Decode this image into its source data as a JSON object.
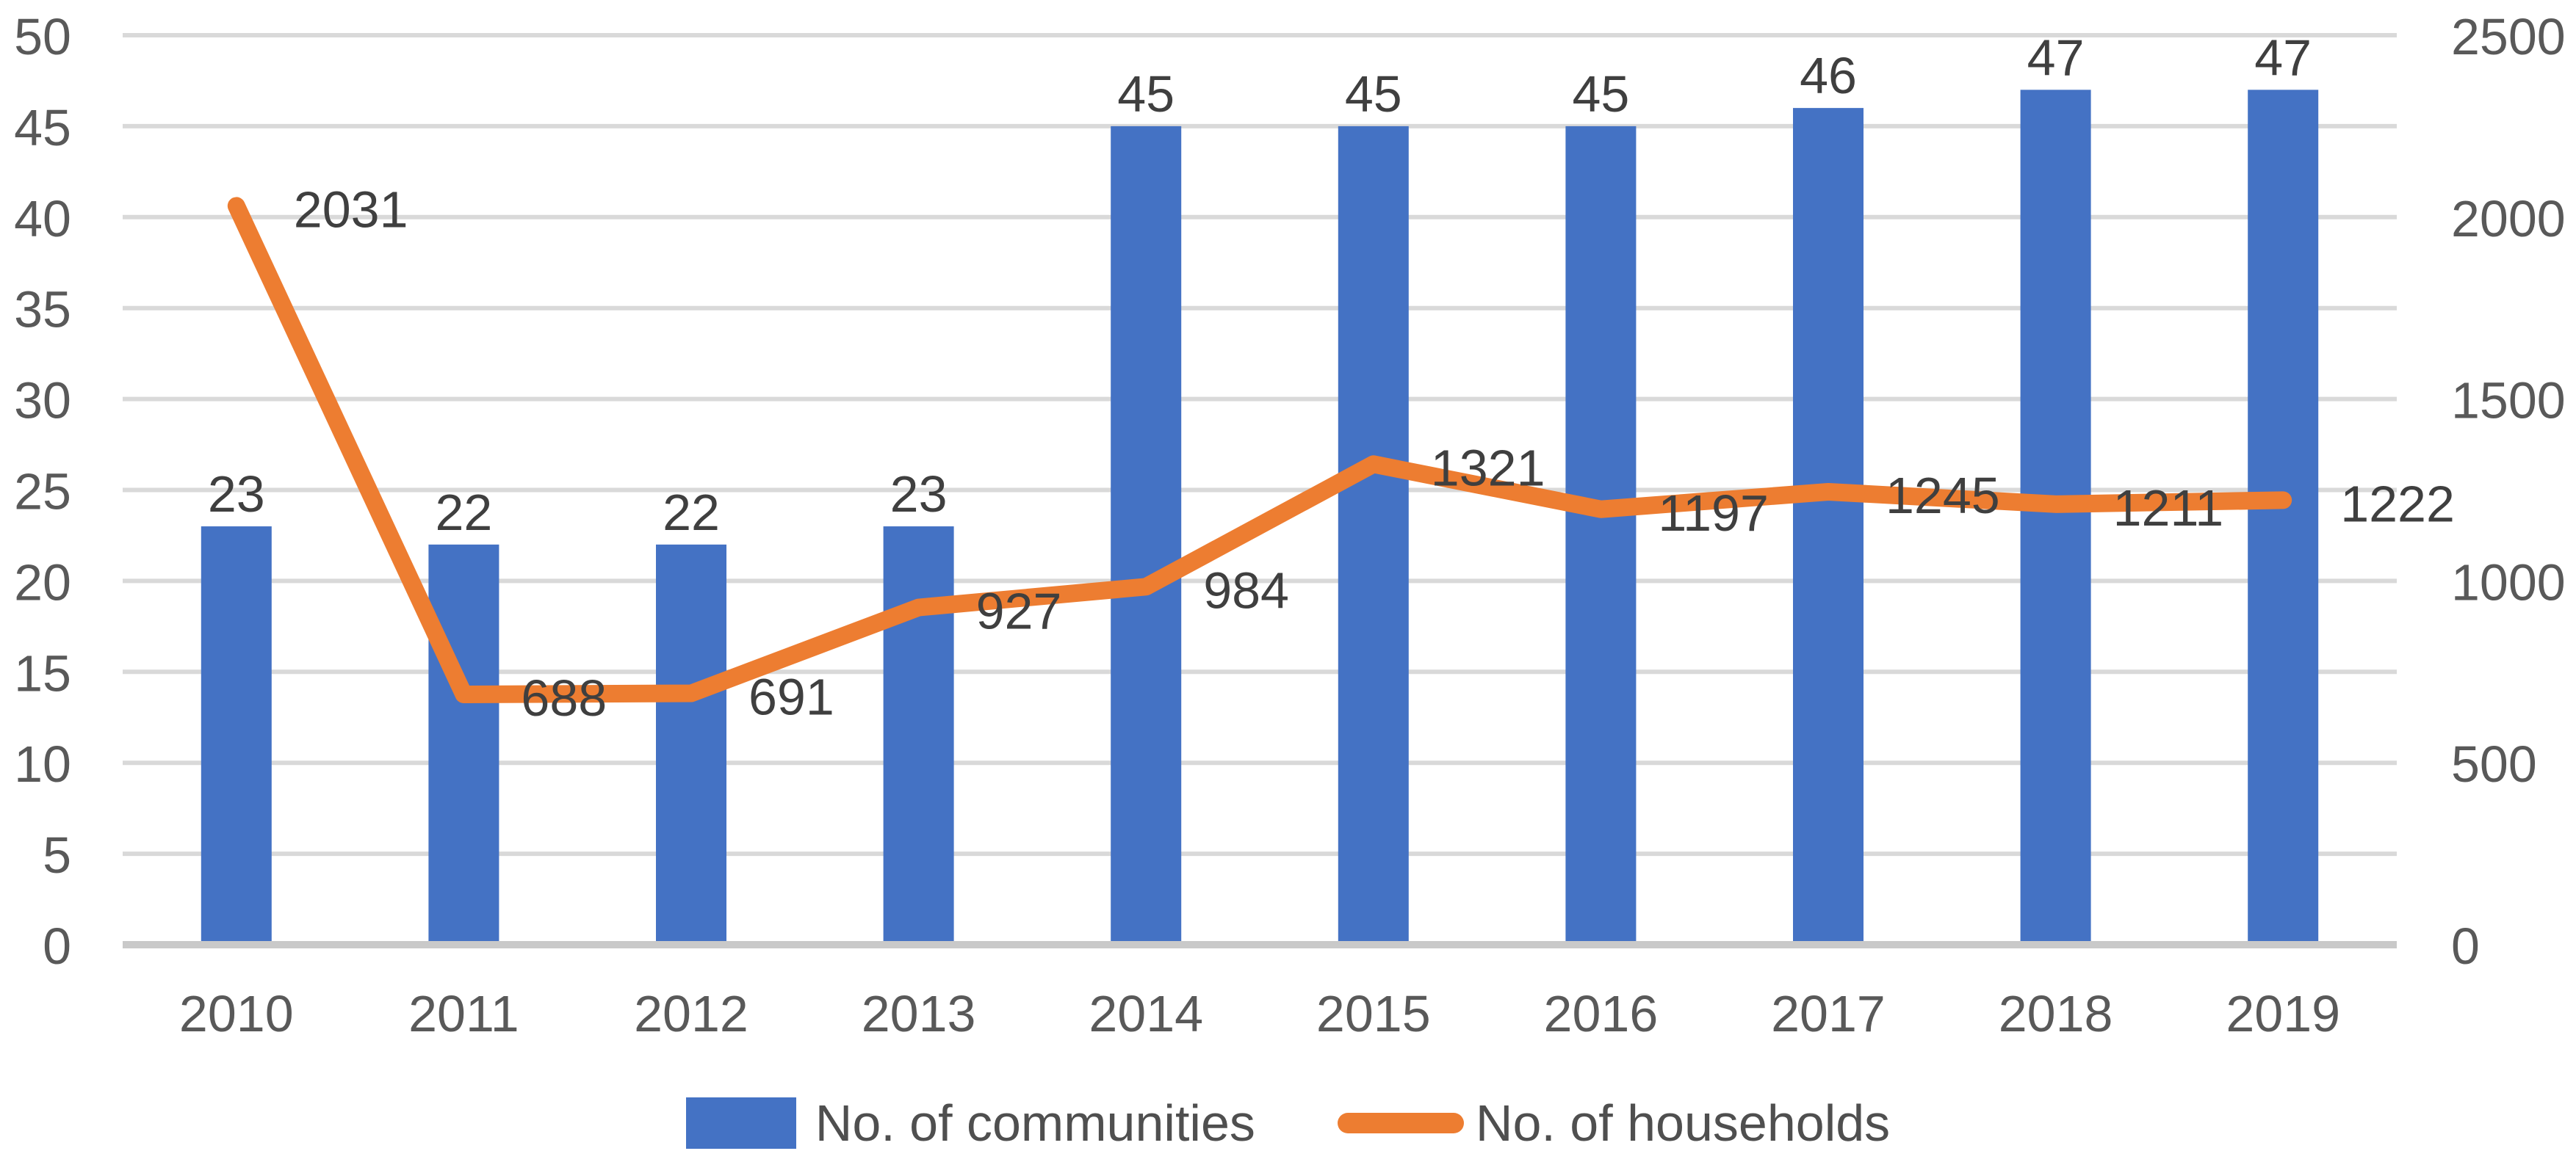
{
  "chart_data": {
    "type": "combo-bar-line",
    "title": "",
    "categories": [
      "2010",
      "2011",
      "2012",
      "2013",
      "2014",
      "2015",
      "2016",
      "2017",
      "2018",
      "2019"
    ],
    "series": [
      {
        "name": "No. of communities",
        "type": "bar",
        "axis": "left",
        "color": "#4472C4",
        "values": [
          23,
          22,
          22,
          23,
          45,
          45,
          45,
          46,
          47,
          47
        ]
      },
      {
        "name": "No. of households",
        "type": "line",
        "axis": "right",
        "color": "#ED7D31",
        "values": [
          2031,
          688,
          691,
          927,
          984,
          1321,
          1197,
          1245,
          1211,
          1222
        ]
      }
    ],
    "left_axis": {
      "min": 0,
      "max": 50,
      "step": 5
    },
    "right_axis": {
      "min": 0,
      "max": 2500,
      "step": 500
    },
    "grid": "horizontal",
    "data_labels": true,
    "legend_position": "bottom"
  },
  "legend": {
    "items": [
      {
        "label": "No. of communities",
        "swatch": "bar",
        "color": "#4472C4"
      },
      {
        "label": "No. of households",
        "swatch": "line",
        "color": "#ED7D31"
      }
    ]
  },
  "colors": {
    "bar": "#4472C4",
    "line": "#ED7D31",
    "gridline": "#D9D9D9",
    "axis_line": "#C9C9C9",
    "tick_label": "#595959",
    "data_label": "#3F3F3F",
    "legend_label": "#4F4F4F",
    "background": "#FFFFFF"
  }
}
